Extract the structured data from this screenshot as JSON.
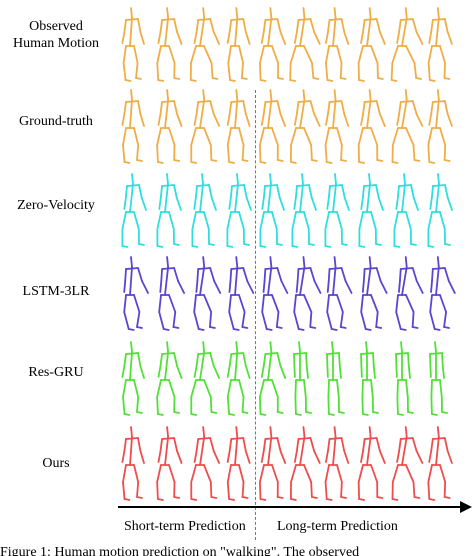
{
  "rows": [
    {
      "label_lines": [
        "Observed",
        "Human Motion"
      ],
      "color": "#f0ad45",
      "style": "observed"
    },
    {
      "label_lines": [
        "Ground-truth"
      ],
      "color": "#f0ad45",
      "style": "walk"
    },
    {
      "label_lines": [
        "Zero-Velocity"
      ],
      "color": "#30dede",
      "style": "static"
    },
    {
      "label_lines": [
        "LSTM-3LR"
      ],
      "color": "#5b45d1",
      "style": "lstm"
    },
    {
      "label_lines": [
        "Res-GRU"
      ],
      "color": "#52e038",
      "style": "resgru"
    },
    {
      "label_lines": [
        "Ours"
      ],
      "color": "#ee4d4d",
      "style": "walk"
    }
  ],
  "figures_per_row": 10,
  "short_term_figures": 4,
  "axis": {
    "short_label": "Short-term Prediction",
    "long_label": "Long-term Prediction"
  },
  "caption_fragment": "Figure 1: Human motion prediction on \"walking\". The observed"
}
